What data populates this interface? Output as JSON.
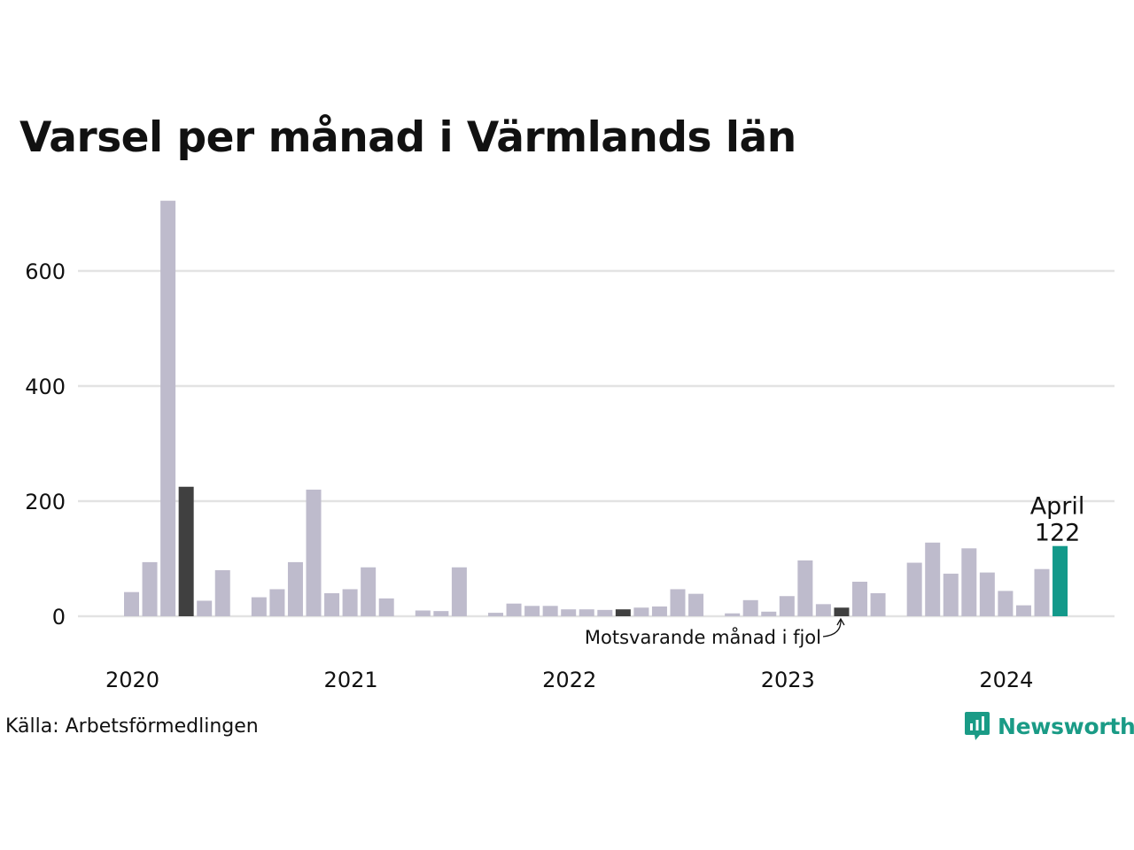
{
  "title": "Varsel per månad i Värmlands län",
  "source": "Källa: Arbetsförmedlingen",
  "brand": "Newsworthy",
  "colors": {
    "bar": "#bebbcc",
    "highlight_prev": "#404040",
    "current": "#13998a",
    "grid": "#e3e3e3",
    "brand": "#1a9b86"
  },
  "chart_data": {
    "type": "bar",
    "title": "Varsel per månad i Värmlands län",
    "ylim": [
      0,
      720
    ],
    "yticks": [
      0,
      200,
      400,
      600
    ],
    "xlabels": [
      {
        "label": "2020",
        "month": "2020-01"
      },
      {
        "label": "2021",
        "month": "2021-01"
      },
      {
        "label": "2022",
        "month": "2022-01"
      },
      {
        "label": "2023",
        "month": "2023-01"
      },
      {
        "label": "2024",
        "month": "2024-01"
      }
    ],
    "grid": true,
    "months": [
      "2020-01",
      "2020-02",
      "2020-03",
      "2020-04",
      "2020-05",
      "2020-06",
      "2020-07",
      "2020-08",
      "2020-09",
      "2020-10",
      "2020-11",
      "2020-12",
      "2021-01",
      "2021-02",
      "2021-03",
      "2021-04",
      "2021-05",
      "2021-06",
      "2021-07",
      "2021-08",
      "2021-09",
      "2021-10",
      "2021-11",
      "2021-12",
      "2022-01",
      "2022-02",
      "2022-03",
      "2022-04",
      "2022-05",
      "2022-06",
      "2022-07",
      "2022-08",
      "2022-09",
      "2022-10",
      "2022-11",
      "2022-12",
      "2023-01",
      "2023-02",
      "2023-03",
      "2023-04",
      "2023-05",
      "2023-06",
      "2023-07",
      "2023-08",
      "2023-09",
      "2023-10",
      "2023-11",
      "2023-12",
      "2024-01",
      "2024-02",
      "2024-03",
      "2024-04"
    ],
    "values": [
      42,
      94,
      722,
      225,
      27,
      80,
      0,
      33,
      47,
      94,
      220,
      40,
      47,
      85,
      31,
      0,
      10,
      9,
      85,
      0,
      6,
      22,
      18,
      18,
      12,
      12,
      11,
      12,
      15,
      17,
      47,
      39,
      0,
      5,
      28,
      8,
      35,
      97,
      21,
      15,
      60,
      40,
      0,
      93,
      128,
      74,
      118,
      76,
      44,
      19,
      82,
      122
    ],
    "highlight": {
      "previous_year": [
        "2020-04",
        "2022-04",
        "2023-04"
      ],
      "current": "2024-04"
    },
    "annotations": {
      "current_label": "April",
      "current_value": "122",
      "previous_label": "Motsvarande månad i fjol"
    }
  }
}
